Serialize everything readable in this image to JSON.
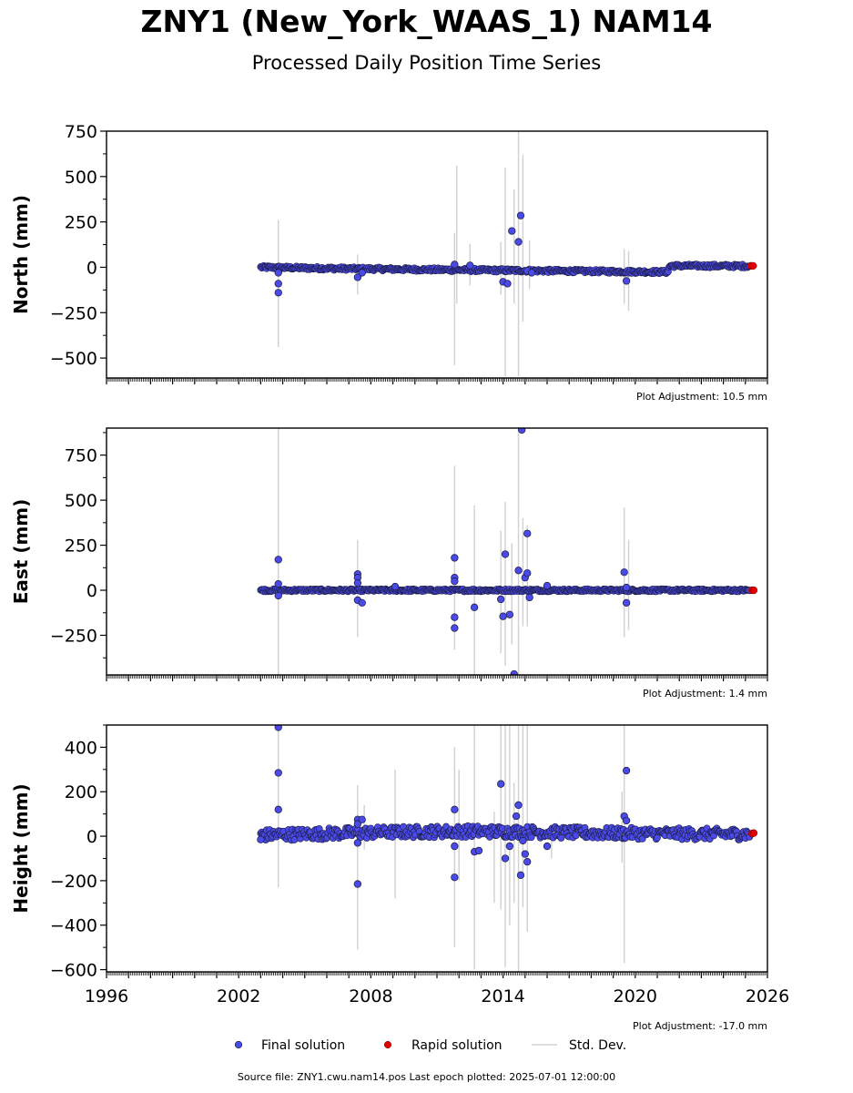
{
  "title": "ZNY1 (New_York_WAAS_1) NAM14",
  "subtitle": "Processed Daily Position Time Series",
  "source_line": "Source file: ZNY1.cwu.nam14.pos  Last epoch plotted: 2025-07-01 12:00:00",
  "colors": {
    "final": "#4a4ae8",
    "rapid": "#e00000",
    "stddev": "#d3d3d3",
    "edge": "#1a1a3a"
  },
  "legend": {
    "final": "Final solution",
    "rapid": "Rapid solution",
    "stddev": "Std. Dev."
  },
  "chart_data": [
    {
      "type": "scatter",
      "panel": "north",
      "ylabel": "North (mm)",
      "adjustment": "Plot Adjustment: 10.5 mm",
      "xlim": [
        1996,
        2026
      ],
      "ylim": [
        -610,
        750
      ],
      "yticks": [
        -500,
        -250,
        0,
        250,
        500,
        750
      ],
      "ytick_labels": [
        "−500",
        "−250",
        "0",
        "250",
        "500",
        "750"
      ],
      "baseline": [
        [
          2003.0,
          0
        ],
        [
          2006.0,
          -6
        ],
        [
          2010.0,
          -12
        ],
        [
          2014.0,
          -17
        ],
        [
          2018.0,
          -22
        ],
        [
          2021.5,
          -26
        ],
        [
          2021.55,
          8
        ],
        [
          2025.2,
          7
        ]
      ],
      "series": [
        {
          "name": "Final solution",
          "points": [
            [
              2003.8,
              -30
            ],
            [
              2003.8,
              -90
            ],
            [
              2003.8,
              -140
            ],
            [
              2007.4,
              -55
            ],
            [
              2007.6,
              -30
            ],
            [
              2011.8,
              15
            ],
            [
              2012.5,
              10
            ],
            [
              2014.0,
              -80
            ],
            [
              2014.2,
              -90
            ],
            [
              2014.4,
              200
            ],
            [
              2014.7,
              140
            ],
            [
              2014.8,
              285
            ],
            [
              2015.1,
              -20
            ],
            [
              2015.3,
              -30
            ],
            [
              2019.6,
              -75
            ]
          ]
        },
        {
          "name": "Rapid solution",
          "points": [
            [
              2025.25,
              8
            ],
            [
              2025.35,
              8
            ]
          ]
        }
      ],
      "std_dev_bars": [
        [
          2003.8,
          -440,
          260
        ],
        [
          2007.4,
          -150,
          70
        ],
        [
          2011.8,
          -540,
          190
        ],
        [
          2011.9,
          -200,
          560
        ],
        [
          2012.5,
          -100,
          130
        ],
        [
          2013.9,
          -150,
          140
        ],
        [
          2014.1,
          -600,
          550
        ],
        [
          2014.5,
          -200,
          430
        ],
        [
          2014.7,
          -600,
          750
        ],
        [
          2014.9,
          -300,
          620
        ],
        [
          2015.2,
          -120,
          150
        ],
        [
          2019.5,
          -200,
          100
        ],
        [
          2019.7,
          -240,
          90
        ]
      ]
    },
    {
      "type": "scatter",
      "panel": "east",
      "ylabel": "East (mm)",
      "adjustment": "Plot Adjustment: 1.4 mm",
      "xlim": [
        1996,
        2026
      ],
      "ylim": [
        -470,
        900
      ],
      "yticks": [
        -250,
        0,
        250,
        500,
        750
      ],
      "ytick_labels": [
        "−250",
        "0",
        "250",
        "500",
        "750"
      ],
      "baseline": [
        [
          2003.0,
          0
        ],
        [
          2025.2,
          0
        ]
      ],
      "series": [
        {
          "name": "Final solution",
          "points": [
            [
              2003.8,
              170
            ],
            [
              2003.8,
              35
            ],
            [
              2003.8,
              -30
            ],
            [
              2007.4,
              90
            ],
            [
              2007.4,
              70
            ],
            [
              2007.4,
              40
            ],
            [
              2007.4,
              -55
            ],
            [
              2007.6,
              -70
            ],
            [
              2009.1,
              20
            ],
            [
              2011.8,
              180
            ],
            [
              2011.8,
              70
            ],
            [
              2011.8,
              50
            ],
            [
              2011.8,
              -150
            ],
            [
              2011.8,
              -210
            ],
            [
              2012.7,
              -95
            ],
            [
              2013.9,
              -50
            ],
            [
              2014.0,
              -145
            ],
            [
              2014.1,
              200
            ],
            [
              2014.3,
              -135
            ],
            [
              2014.5,
              -465
            ],
            [
              2014.7,
              110
            ],
            [
              2014.85,
              890
            ],
            [
              2015.0,
              70
            ],
            [
              2015.1,
              315
            ],
            [
              2015.1,
              95
            ],
            [
              2015.2,
              -40
            ],
            [
              2016.0,
              25
            ],
            [
              2019.5,
              100
            ],
            [
              2019.6,
              15
            ],
            [
              2019.6,
              -70
            ]
          ]
        },
        {
          "name": "Rapid solution",
          "points": [
            [
              2025.3,
              0
            ],
            [
              2025.38,
              0
            ]
          ]
        }
      ],
      "std_dev_bars": [
        [
          2003.8,
          -470,
          900
        ],
        [
          2003.8,
          -230,
          250
        ],
        [
          2007.4,
          -260,
          280
        ],
        [
          2011.8,
          -330,
          690
        ],
        [
          2012.7,
          -470,
          470
        ],
        [
          2013.9,
          -350,
          330
        ],
        [
          2014.1,
          -420,
          490
        ],
        [
          2014.4,
          -300,
          260
        ],
        [
          2014.7,
          -470,
          900
        ],
        [
          2014.9,
          -200,
          400
        ],
        [
          2015.1,
          -200,
          360
        ],
        [
          2019.5,
          -260,
          460
        ],
        [
          2019.7,
          -220,
          280
        ]
      ]
    },
    {
      "type": "scatter",
      "panel": "height",
      "ylabel": "Height (mm)",
      "adjustment": "Plot Adjustment: -17.0 mm",
      "xlim": [
        1996,
        2026
      ],
      "xticks": [
        1996,
        2002,
        2008,
        2014,
        2020,
        2026
      ],
      "xtick_labels": [
        "1996",
        "2002",
        "2008",
        "2014",
        "2020",
        "2026"
      ],
      "ylim": [
        -610,
        500
      ],
      "yticks": [
        -600,
        -400,
        -200,
        0,
        200,
        400
      ],
      "ytick_labels": [
        "−600",
        "−400",
        "−200",
        "0",
        "200",
        "400"
      ],
      "baseline": [
        [
          2003.0,
          5
        ],
        [
          2006.0,
          12
        ],
        [
          2009.0,
          18
        ],
        [
          2012.0,
          22
        ],
        [
          2015.0,
          20
        ],
        [
          2018.0,
          14
        ],
        [
          2021.0,
          12
        ],
        [
          2023.0,
          10
        ],
        [
          2025.2,
          10
        ]
      ],
      "series": [
        {
          "name": "Final solution",
          "points": [
            [
              2003.8,
              490
            ],
            [
              2003.8,
              285
            ],
            [
              2003.8,
              120
            ],
            [
              2003.0,
              -15
            ],
            [
              2007.4,
              75
            ],
            [
              2007.4,
              55
            ],
            [
              2007.4,
              -30
            ],
            [
              2007.4,
              -215
            ],
            [
              2007.6,
              75
            ],
            [
              2011.8,
              120
            ],
            [
              2011.8,
              -45
            ],
            [
              2011.8,
              -185
            ],
            [
              2012.7,
              -70
            ],
            [
              2012.9,
              -65
            ],
            [
              2013.9,
              235
            ],
            [
              2014.1,
              -100
            ],
            [
              2014.3,
              -45
            ],
            [
              2014.6,
              90
            ],
            [
              2014.7,
              140
            ],
            [
              2014.8,
              -175
            ],
            [
              2014.9,
              -20
            ],
            [
              2015.0,
              -80
            ],
            [
              2015.1,
              -115
            ],
            [
              2016.0,
              -45
            ],
            [
              2019.5,
              90
            ],
            [
              2019.6,
              295
            ],
            [
              2019.6,
              70
            ]
          ]
        },
        {
          "name": "Rapid solution",
          "points": [
            [
              2025.3,
              12
            ],
            [
              2025.38,
              14
            ]
          ]
        }
      ],
      "std_dev_bars": [
        [
          2003.8,
          -230,
          500
        ],
        [
          2007.4,
          -510,
          230
        ],
        [
          2007.7,
          -60,
          140
        ],
        [
          2009.1,
          -280,
          300
        ],
        [
          2011.8,
          -500,
          400
        ],
        [
          2012.0,
          -200,
          300
        ],
        [
          2012.7,
          -600,
          500
        ],
        [
          2013.6,
          -300,
          110
        ],
        [
          2013.9,
          -330,
          500
        ],
        [
          2014.1,
          -590,
          500
        ],
        [
          2014.3,
          -400,
          500
        ],
        [
          2014.5,
          -300,
          240
        ],
        [
          2014.7,
          -610,
          500
        ],
        [
          2014.9,
          -320,
          500
        ],
        [
          2015.1,
          -430,
          500
        ],
        [
          2016.2,
          -100,
          50
        ],
        [
          2019.4,
          -120,
          200
        ],
        [
          2019.5,
          -570,
          500
        ]
      ]
    }
  ]
}
